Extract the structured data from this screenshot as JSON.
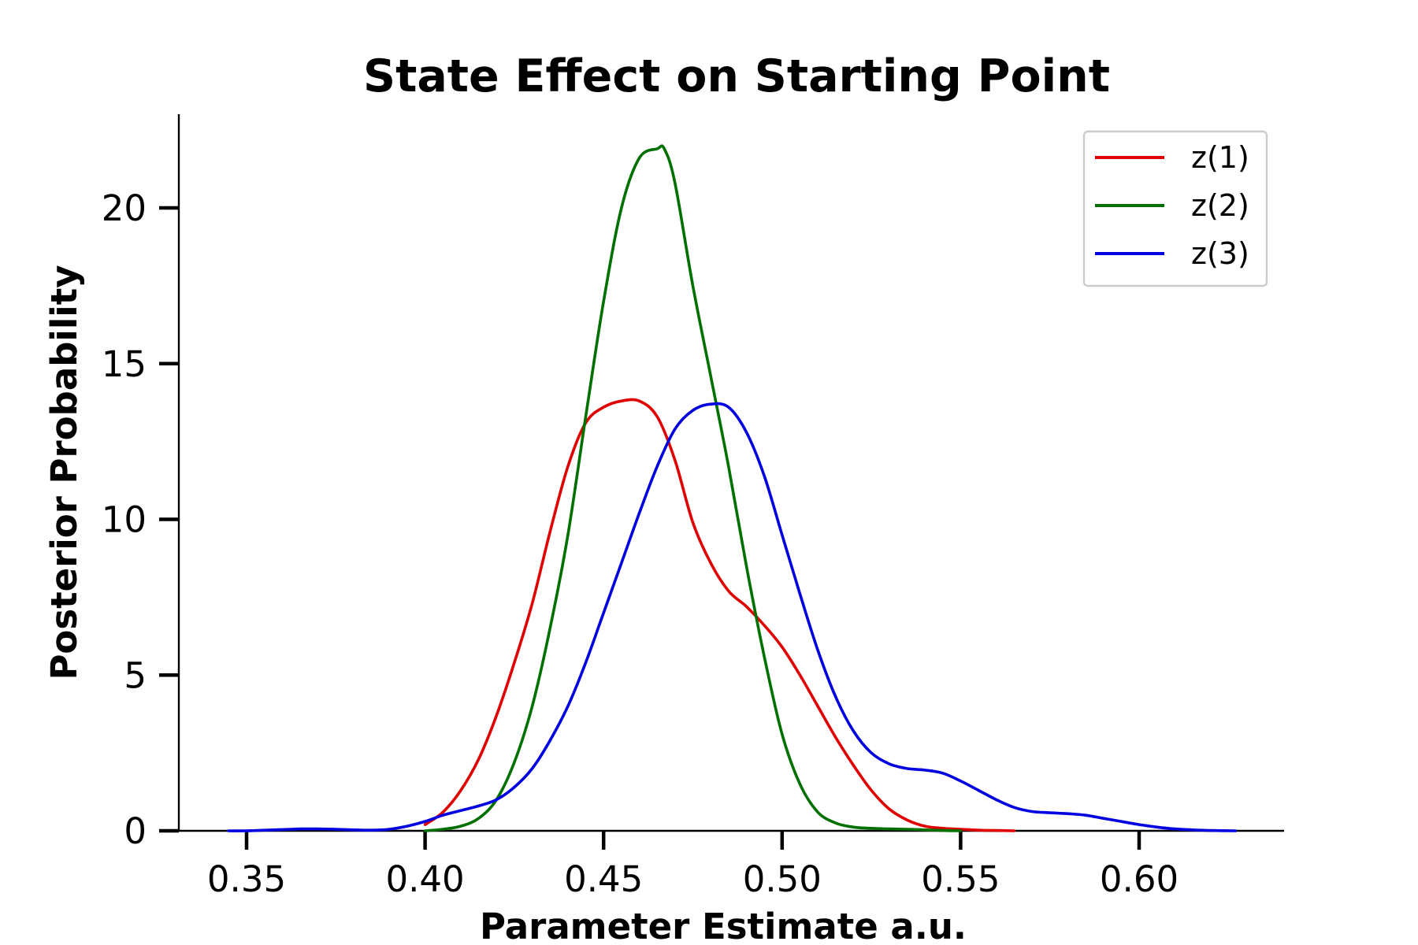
{
  "chart_data": {
    "type": "line",
    "title": "State Effect on Starting Point",
    "xlabel": "Parameter Estimate a.u.",
    "ylabel": "Posterior Probability",
    "xlim": [
      0.33,
      0.64
    ],
    "ylim": [
      0,
      23
    ],
    "xticks": [
      "0.35",
      "0.40",
      "0.45",
      "0.50",
      "0.55",
      "0.60"
    ],
    "yticks": [
      "0",
      "5",
      "10",
      "15",
      "20"
    ],
    "grid": false,
    "legend_position": "top-right",
    "series": [
      {
        "name": "z(1)",
        "color": "#e00000",
        "x": [
          0.4,
          0.405,
          0.41,
          0.415,
          0.42,
          0.425,
          0.43,
          0.435,
          0.44,
          0.445,
          0.45,
          0.455,
          0.46,
          0.465,
          0.47,
          0.475,
          0.48,
          0.485,
          0.49,
          0.495,
          0.5,
          0.505,
          0.51,
          0.515,
          0.52,
          0.525,
          0.53,
          0.535,
          0.54,
          0.545,
          0.55,
          0.555,
          0.56,
          0.565
        ],
        "y": [
          0.2,
          0.6,
          1.3,
          2.3,
          3.7,
          5.4,
          7.3,
          9.6,
          11.7,
          13.1,
          13.6,
          13.8,
          13.8,
          13.3,
          11.9,
          9.9,
          8.6,
          7.7,
          7.2,
          6.6,
          5.9,
          5.0,
          4.0,
          3.0,
          2.1,
          1.3,
          0.7,
          0.35,
          0.15,
          0.08,
          0.05,
          0.02,
          0.01,
          0.0
        ]
      },
      {
        "name": "z(2)",
        "color": "#007000",
        "x": [
          0.4,
          0.405,
          0.41,
          0.415,
          0.42,
          0.425,
          0.43,
          0.435,
          0.44,
          0.445,
          0.45,
          0.455,
          0.46,
          0.465,
          0.467,
          0.47,
          0.475,
          0.48,
          0.485,
          0.49,
          0.495,
          0.5,
          0.505,
          0.51,
          0.515,
          0.52,
          0.525,
          0.53,
          0.535,
          0.54,
          0.545,
          0.55
        ],
        "y": [
          0.0,
          0.05,
          0.15,
          0.4,
          1.0,
          2.2,
          4.0,
          6.5,
          9.5,
          13.3,
          17.0,
          20.0,
          21.6,
          21.9,
          21.9,
          20.8,
          17.5,
          14.6,
          11.7,
          8.5,
          5.6,
          3.1,
          1.5,
          0.6,
          0.25,
          0.12,
          0.08,
          0.06,
          0.05,
          0.03,
          0.01,
          0.0
        ]
      },
      {
        "name": "z(3)",
        "color": "#0000e0",
        "x": [
          0.345,
          0.35,
          0.355,
          0.36,
          0.365,
          0.37,
          0.375,
          0.38,
          0.385,
          0.39,
          0.395,
          0.4,
          0.405,
          0.41,
          0.415,
          0.42,
          0.425,
          0.43,
          0.435,
          0.44,
          0.445,
          0.45,
          0.455,
          0.46,
          0.465,
          0.47,
          0.475,
          0.48,
          0.485,
          0.49,
          0.495,
          0.5,
          0.505,
          0.51,
          0.515,
          0.52,
          0.525,
          0.53,
          0.535,
          0.54,
          0.545,
          0.55,
          0.555,
          0.56,
          0.565,
          0.57,
          0.575,
          0.58,
          0.585,
          0.59,
          0.595,
          0.6,
          0.605,
          0.61,
          0.615,
          0.62,
          0.627
        ],
        "y": [
          0.0,
          0.0,
          0.02,
          0.04,
          0.06,
          0.06,
          0.05,
          0.03,
          0.02,
          0.05,
          0.15,
          0.3,
          0.5,
          0.65,
          0.8,
          1.0,
          1.4,
          2.0,
          2.9,
          4.0,
          5.4,
          7.0,
          8.6,
          10.2,
          11.7,
          12.9,
          13.5,
          13.7,
          13.6,
          12.8,
          11.4,
          9.5,
          7.6,
          5.8,
          4.3,
          3.2,
          2.5,
          2.15,
          2.0,
          1.95,
          1.85,
          1.6,
          1.3,
          1.0,
          0.75,
          0.62,
          0.58,
          0.55,
          0.5,
          0.4,
          0.3,
          0.2,
          0.12,
          0.06,
          0.03,
          0.01,
          0.0
        ]
      }
    ]
  }
}
